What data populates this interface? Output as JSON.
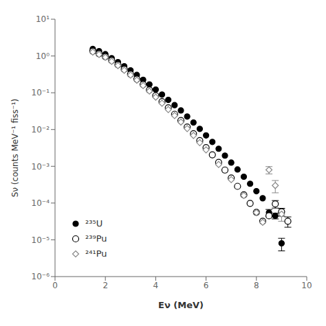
{
  "chart_data": {
    "type": "scatter",
    "xlabel": "Eν (MeV)",
    "ylabel": "Sν (counts MeV⁻¹ fiss⁻¹)",
    "log": "y",
    "grid": false,
    "legend": "lower left",
    "xlim": [
      0,
      10
    ],
    "xticks": [
      0,
      2,
      4,
      6,
      8,
      10
    ],
    "ylim": [
      1e-06,
      10
    ],
    "yticks": [
      {
        "value": 1e-06,
        "label": "10⁻⁶"
      },
      {
        "value": 1e-05,
        "label": "10⁻⁵"
      },
      {
        "value": 0.0001,
        "label": "10⁻⁴"
      },
      {
        "value": 0.001,
        "label": "10⁻³"
      },
      {
        "value": 0.01,
        "label": "10⁻²"
      },
      {
        "value": 0.1,
        "label": "10⁻¹"
      },
      {
        "value": 1,
        "label": "10⁰"
      },
      {
        "value": 10,
        "label": "10¹"
      }
    ],
    "series": [
      {
        "name": "²³⁵U",
        "color": "black",
        "marker": "circle",
        "x": [
          1.5,
          1.75,
          2.0,
          2.25,
          2.5,
          2.75,
          3.0,
          3.25,
          3.5,
          3.75,
          4.0,
          4.25,
          4.5,
          4.75,
          5.0,
          5.25,
          5.5,
          5.75,
          6.0,
          6.25,
          6.5,
          6.75,
          7.0,
          7.25,
          7.5,
          7.75,
          8.0,
          8.25,
          8.5,
          8.75,
          9.0
        ],
        "values": [
          1.55,
          1.35,
          1.12,
          0.87,
          0.68,
          0.525,
          0.405,
          0.305,
          0.225,
          0.168,
          0.122,
          0.089,
          0.064,
          0.046,
          0.033,
          0.0225,
          0.0155,
          0.0104,
          0.0069,
          0.0046,
          0.003,
          0.00195,
          0.00126,
          0.00082,
          0.00052,
          0.000335,
          0.00021,
          0.000135,
          5.5e-05,
          4.5e-05,
          8e-06
        ],
        "errors": [
          0.0,
          0.0,
          0.0,
          0.0,
          0.0,
          0.0,
          0.0,
          0.0,
          0.0,
          0.0,
          0.0,
          0.0,
          0.0,
          0.0,
          0.0,
          0.0,
          0.0,
          0.0,
          0.0,
          0.0,
          0.0,
          0.0,
          0.0,
          0.0,
          0.0,
          0.0,
          0.0,
          0.0,
          1.2e-05,
          8e-06,
          3e-06
        ]
      },
      {
        "name": "²³⁹Pu",
        "color": "black",
        "marker": "circle-open",
        "x": [
          1.5,
          1.75,
          2.0,
          2.25,
          2.5,
          2.75,
          3.0,
          3.25,
          3.5,
          3.75,
          4.0,
          4.25,
          4.5,
          4.75,
          5.0,
          5.25,
          5.5,
          5.75,
          6.0,
          6.25,
          6.5,
          6.75,
          7.0,
          7.25,
          7.5,
          7.75,
          8.0,
          8.25,
          8.5,
          8.75,
          9.0,
          9.25
        ],
        "values": [
          1.35,
          1.15,
          0.95,
          0.75,
          0.575,
          0.435,
          0.32,
          0.234,
          0.168,
          0.119,
          0.083,
          0.057,
          0.039,
          0.026,
          0.0175,
          0.0117,
          0.0077,
          0.005,
          0.0032,
          0.00205,
          0.00128,
          0.00079,
          0.00048,
          0.000285,
          0.000167,
          9.8e-05,
          5.6e-05,
          3.2e-05,
          4.5e-05,
          9.5e-05,
          5.8e-05,
          3.2e-05
        ],
        "errors": [
          0.0,
          0.0,
          0.0,
          0.0,
          0.0,
          0.0,
          0.0,
          0.0,
          0.0,
          0.0,
          0.0,
          0.0,
          0.0,
          0.0,
          0.0,
          0.0,
          0.0,
          0.0,
          0.0,
          0.0,
          0.0,
          0.0,
          0.0,
          0.0,
          0.0,
          0.0,
          0.0,
          0.0,
          0.0,
          2.2e-05,
          1.4e-05,
          1e-05
        ]
      },
      {
        "name": "²⁴¹Pu",
        "color": "#888888",
        "marker": "diamond-open",
        "x": [
          1.5,
          1.75,
          2.0,
          2.25,
          2.5,
          2.75,
          3.0,
          3.25,
          3.5,
          3.75,
          4.0,
          4.25,
          4.5,
          4.75,
          5.0,
          5.25,
          5.5,
          5.75,
          6.0,
          6.5,
          7.0,
          7.5,
          8.0,
          8.25,
          8.5,
          8.75,
          9.0
        ],
        "values": [
          1.28,
          1.1,
          0.92,
          0.715,
          0.548,
          0.41,
          0.302,
          0.22,
          0.157,
          0.111,
          0.076,
          0.052,
          0.035,
          0.024,
          0.016,
          0.0106,
          0.0069,
          0.0044,
          0.0028,
          0.00112,
          0.000435,
          0.00016,
          5.5e-05,
          3e-05,
          0.0008,
          0.0003,
          5e-05
        ],
        "errors": [
          0.0,
          0.0,
          0.0,
          0.0,
          0.0,
          0.0,
          0.0,
          0.0,
          0.0,
          0.0,
          0.0,
          0.0,
          0.0,
          0.0,
          0.0,
          0.0,
          0.0,
          0.0,
          0.0,
          0.0,
          0.0,
          0.0,
          0.0,
          0.0,
          0.00018,
          0.00011,
          1.8e-05
        ]
      }
    ]
  }
}
